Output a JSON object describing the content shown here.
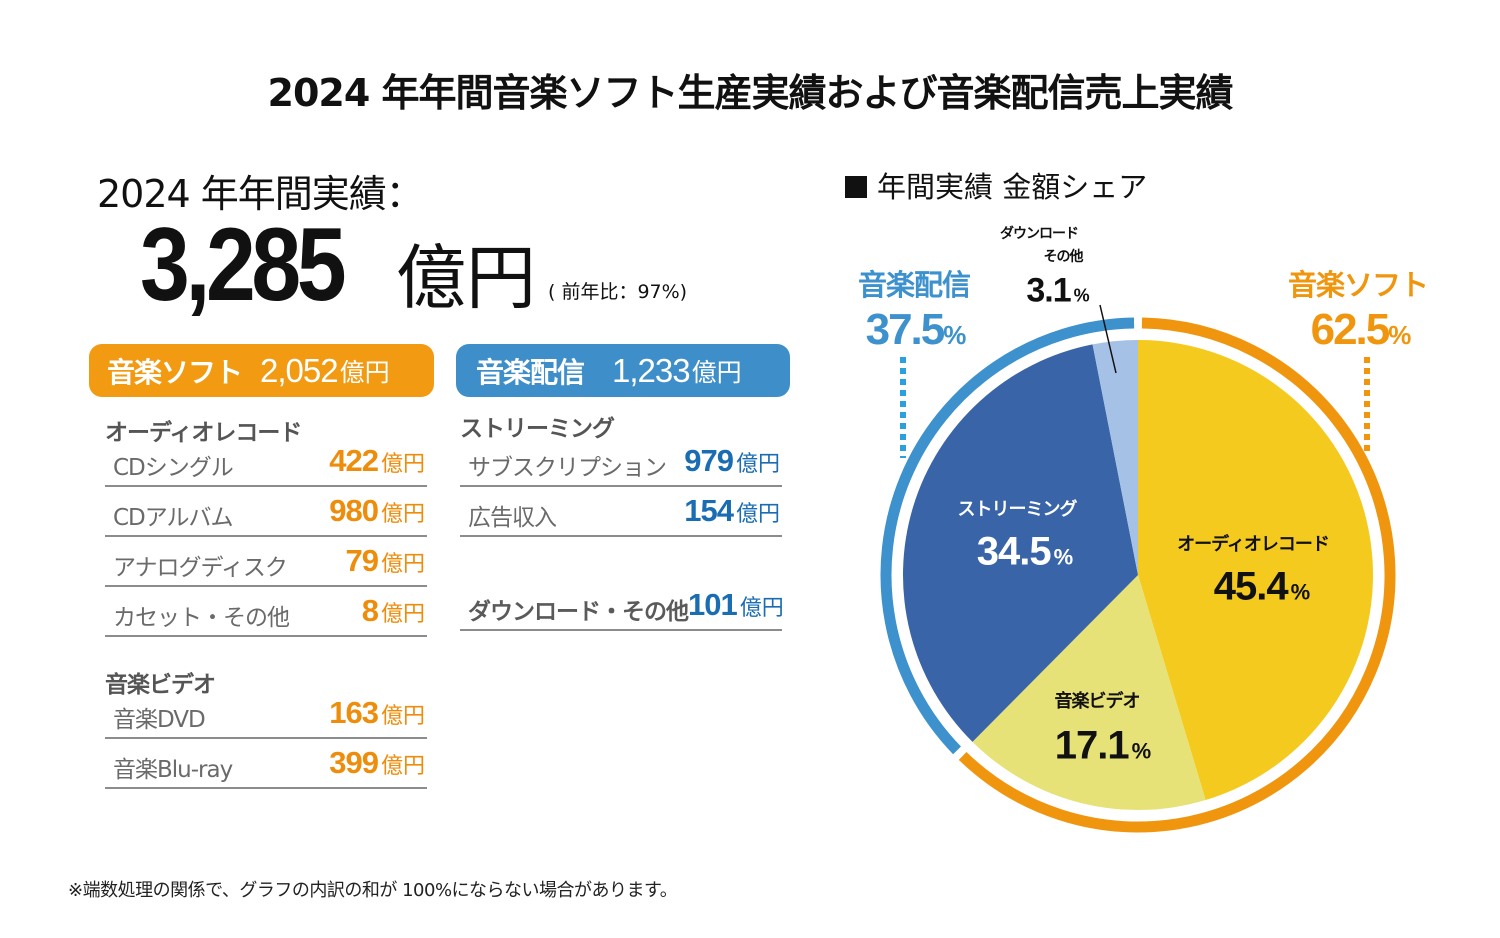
{
  "title": "2024 年年間音楽ソフト生産実績および音楽配信売上実績",
  "summary": {
    "label": "2024 年年間実績：",
    "total_value": "3,285",
    "total_unit": "億円",
    "yoy": "( 前年比：97%)"
  },
  "software": {
    "badge_label": "音楽ソフト",
    "badge_value": "2,052",
    "badge_unit": "億円",
    "color": "#f19a12",
    "groups": [
      {
        "heading": "オーディオレコード",
        "rows": [
          {
            "label": "CDシングル",
            "value": "422",
            "unit": "億円"
          },
          {
            "label": "CDアルバム",
            "value": "980",
            "unit": "億円"
          },
          {
            "label": "アナログディスク",
            "value": "79",
            "unit": "億円"
          },
          {
            "label": "カセット・その他",
            "value": "8",
            "unit": "億円"
          }
        ]
      },
      {
        "heading": "音楽ビデオ",
        "rows": [
          {
            "label": "音楽DVD",
            "value": "163",
            "unit": "億円"
          },
          {
            "label": "音楽Blu-ray",
            "value": "399",
            "unit": "億円"
          }
        ]
      }
    ]
  },
  "streaming": {
    "badge_label": "音楽配信",
    "badge_value": "1,233",
    "badge_unit": "億円",
    "color": "#3e8fc9",
    "groups": [
      {
        "heading": "ストリーミング",
        "rows": [
          {
            "label": "サブスクリプション",
            "value": "979",
            "unit": "億円"
          },
          {
            "label": "広告収入",
            "value": "154",
            "unit": "億円"
          }
        ]
      },
      {
        "heading": "",
        "rows": [
          {
            "label": "ダウンロード・その他",
            "value": "101",
            "unit": "億円"
          }
        ]
      }
    ]
  },
  "chart_data": {
    "type": "pie",
    "title": "年間実績 金額シェア",
    "unit": "%",
    "start": "12 o'clock",
    "direction": "clockwise",
    "slices": [
      {
        "label": "オーディオレコード",
        "value": 45.4,
        "color": "#f4ca1e",
        "group": "音楽ソフト"
      },
      {
        "label": "音楽ビデオ",
        "value": 17.1,
        "color": "#e6e277",
        "group": "音楽ソフト"
      },
      {
        "label": "ストリーミング",
        "value": 34.5,
        "color": "#3964a8",
        "group": "音楽配信"
      },
      {
        "label": "ダウンロード・その他",
        "label_lines": [
          "ダウンロード",
          "その他"
        ],
        "value": 3.1,
        "color": "#a5c1e5",
        "group": "音楽配信"
      }
    ],
    "groups": [
      {
        "label": "音楽ソフト",
        "value": 62.5,
        "color": "#f0960e"
      },
      {
        "label": "音楽配信",
        "value": 37.5,
        "color": "#3d91cc"
      }
    ]
  },
  "footnote": "※端数処理の関係で、グラフの内訳の和が 100%にならない場合があります。"
}
